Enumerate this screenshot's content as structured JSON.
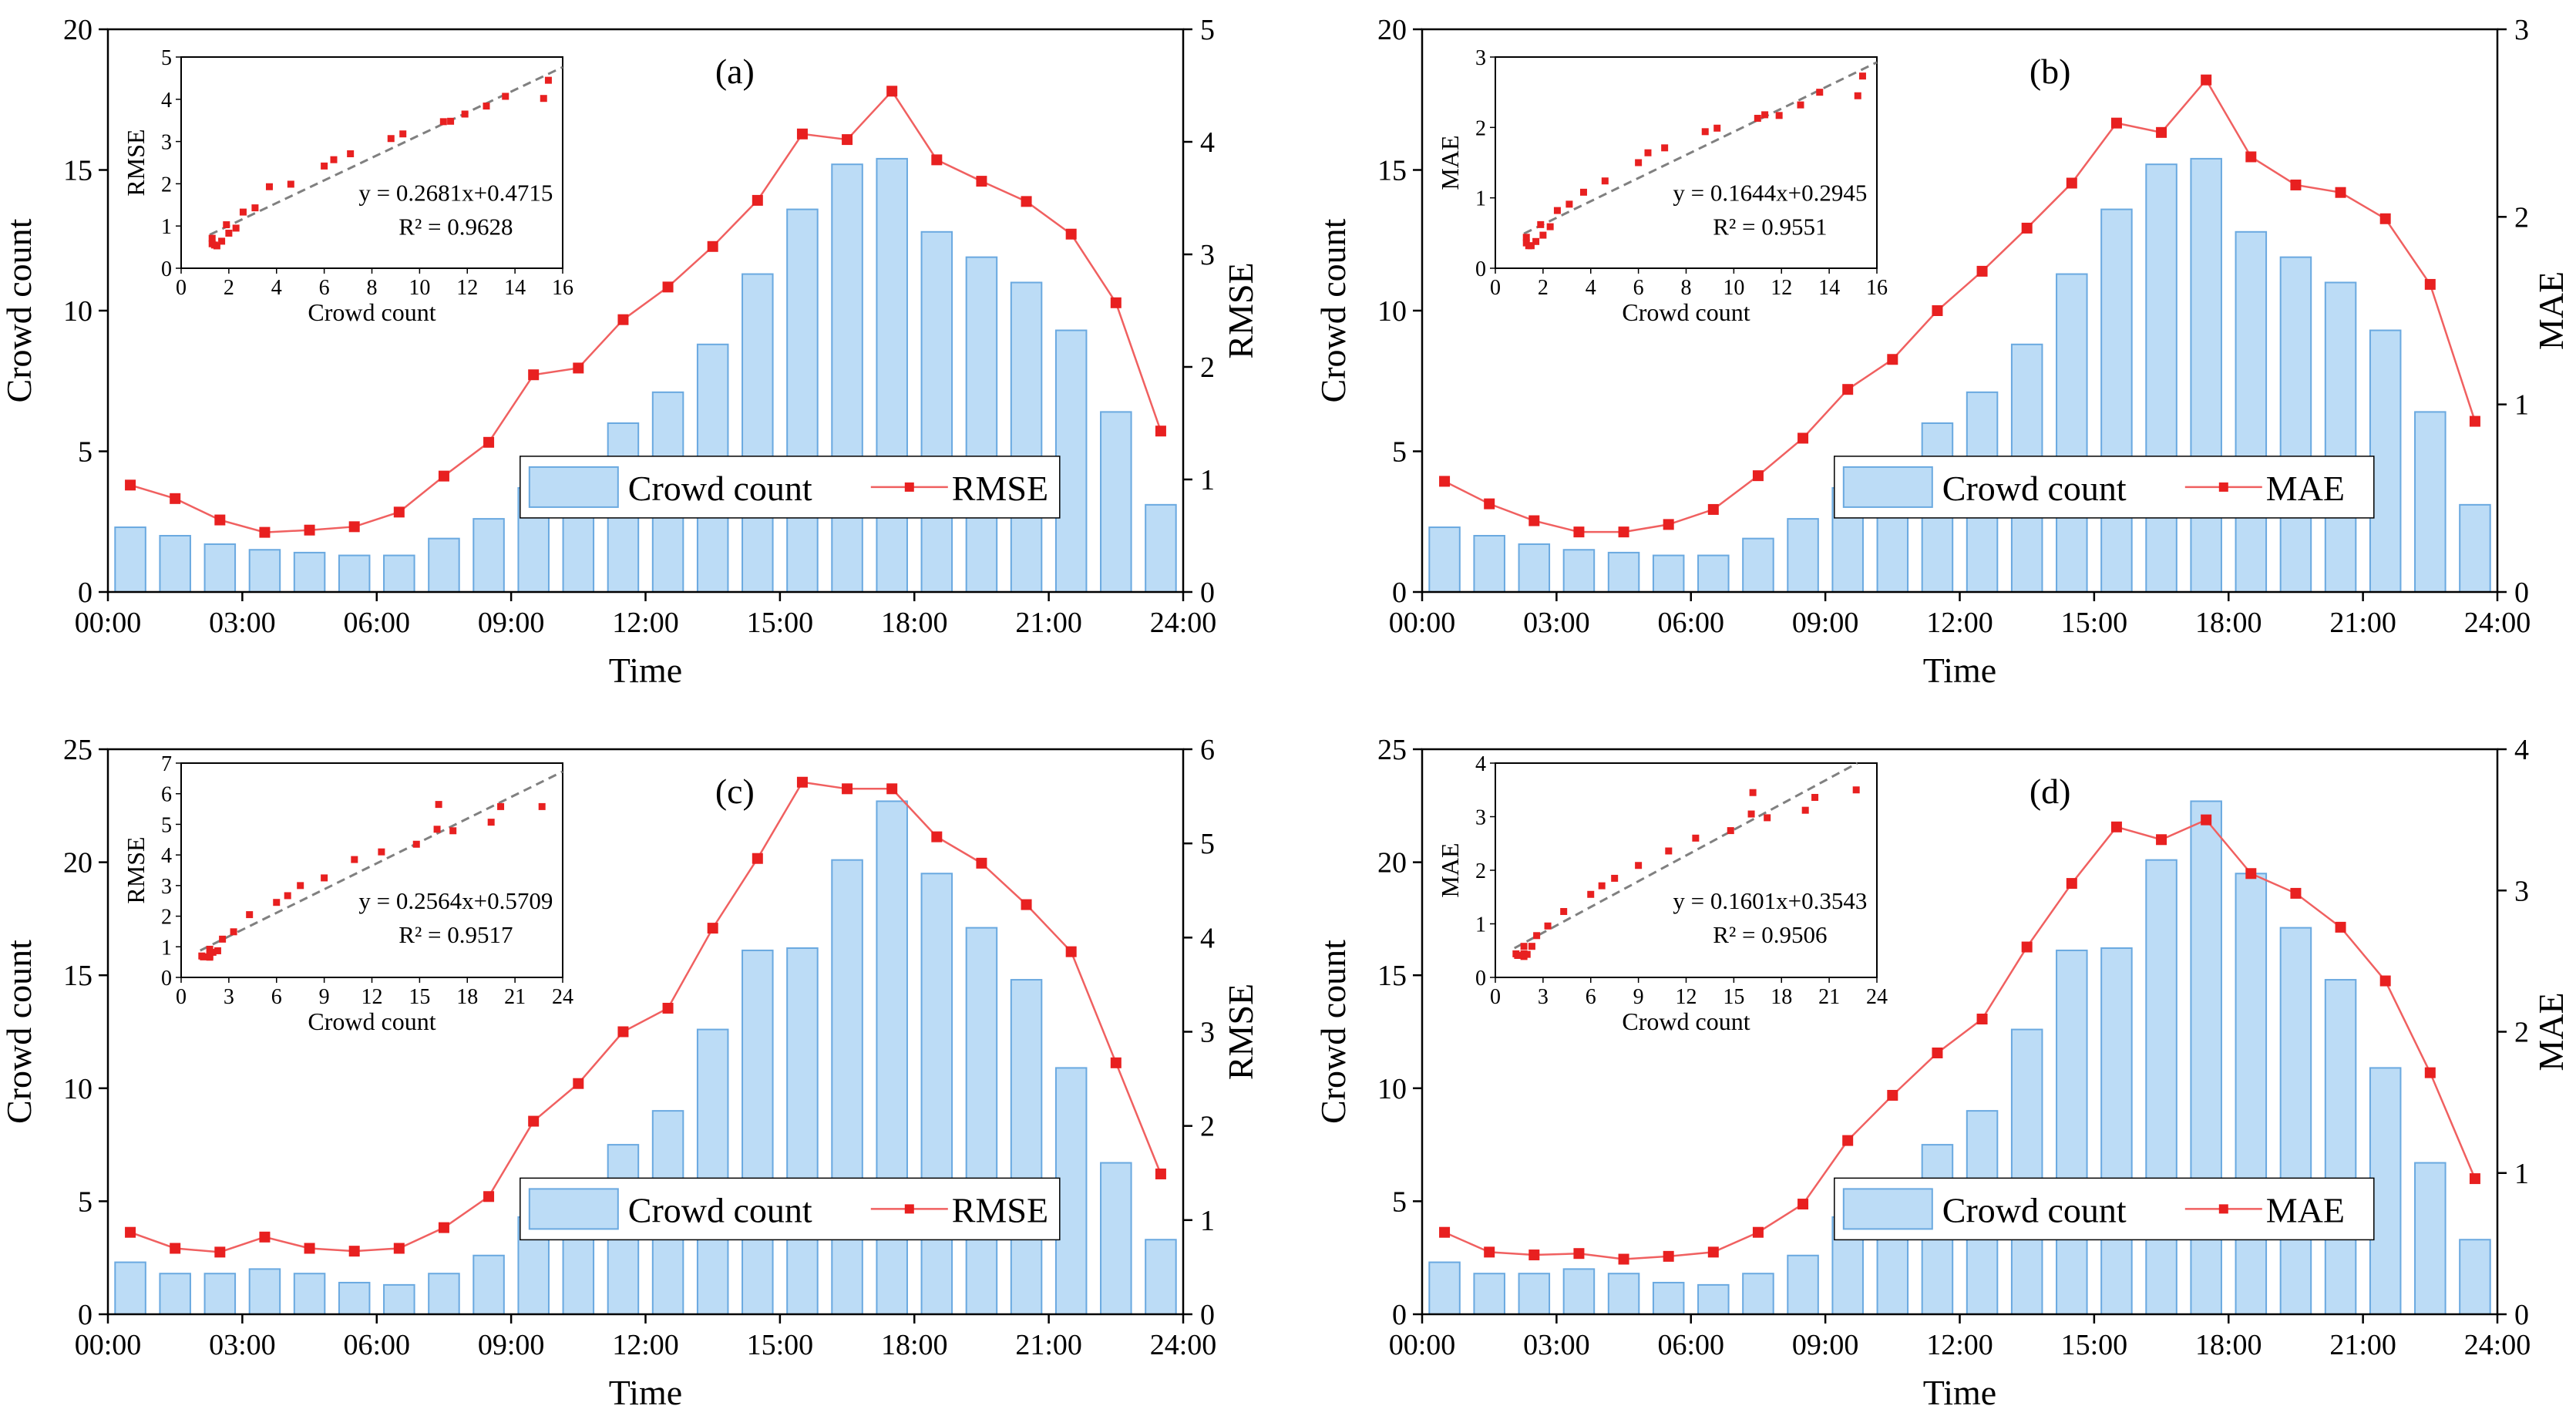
{
  "colors": {
    "bar_fill": "#bcdcf6",
    "bar_stroke": "#6aa9e0",
    "line": "#f06060",
    "marker": "#e82020",
    "fit_line": "#808080",
    "axis": "#000000"
  },
  "chart_data": [
    {
      "panel": "(a)",
      "type": "bar+line",
      "xlabel": "Time",
      "ylabel": "Crowd count",
      "y2label": "RMSE",
      "xticks": [
        "00:00",
        "03:00",
        "06:00",
        "09:00",
        "12:00",
        "15:00",
        "18:00",
        "21:00",
        "24:00"
      ],
      "ylim": [
        0,
        20
      ],
      "yticks": [
        "0",
        "5",
        "10",
        "15",
        "20"
      ],
      "y2lim": [
        0,
        5
      ],
      "y2ticks": [
        "0",
        "1",
        "2",
        "3",
        "4",
        "5"
      ],
      "legend": {
        "bar": "Crowd count",
        "line": "RMSE"
      },
      "series": [
        {
          "name": "Crowd count",
          "type": "bar",
          "values": [
            2.3,
            2.0,
            1.7,
            1.5,
            1.4,
            1.3,
            1.3,
            1.9,
            2.6,
            3.7,
            4.6,
            6.0,
            7.1,
            8.8,
            11.3,
            13.6,
            15.2,
            15.4,
            12.8,
            11.9,
            11.0,
            9.3,
            6.4,
            3.1
          ]
        },
        {
          "name": "RMSE",
          "type": "line",
          "values": [
            0.95,
            0.83,
            0.64,
            0.53,
            0.55,
            0.58,
            0.71,
            1.03,
            1.33,
            1.93,
            1.99,
            2.42,
            2.71,
            3.07,
            3.48,
            4.07,
            4.02,
            4.45,
            3.84,
            3.65,
            3.47,
            3.18,
            2.57,
            1.43
          ]
        }
      ],
      "inset": {
        "xlabel": "Crowd count",
        "ylabel": "RMSE",
        "xlim": [
          0,
          16
        ],
        "xticks": [
          "0",
          "2",
          "4",
          "6",
          "8",
          "10",
          "12",
          "14",
          "16"
        ],
        "ylim": [
          0,
          5
        ],
        "yticks": [
          "0",
          "1",
          "2",
          "3",
          "4",
          "5"
        ],
        "fit": {
          "slope": 0.2681,
          "intercept": 0.4715
        },
        "equation": "y = 0.2681x+0.4715",
        "r2": "R² = 0.9628"
      }
    },
    {
      "panel": "(b)",
      "type": "bar+line",
      "xlabel": "Time",
      "ylabel": "Crowd count",
      "y2label": "MAE",
      "xticks": [
        "00:00",
        "03:00",
        "06:00",
        "09:00",
        "12:00",
        "15:00",
        "18:00",
        "21:00",
        "24:00"
      ],
      "ylim": [
        0,
        20
      ],
      "yticks": [
        "0",
        "5",
        "10",
        "15",
        "20"
      ],
      "y2lim": [
        0,
        3
      ],
      "y2ticks": [
        "0",
        "1",
        "2",
        "3"
      ],
      "legend": {
        "bar": "Crowd count",
        "line": "MAE"
      },
      "series": [
        {
          "name": "Crowd count",
          "type": "bar",
          "values": [
            2.3,
            2.0,
            1.7,
            1.5,
            1.4,
            1.3,
            1.3,
            1.9,
            2.6,
            3.7,
            4.6,
            6.0,
            7.1,
            8.8,
            11.3,
            13.6,
            15.2,
            15.4,
            12.8,
            11.9,
            11.0,
            9.3,
            6.4,
            3.1
          ]
        },
        {
          "name": "MAE",
          "type": "line",
          "values": [
            0.59,
            0.47,
            0.38,
            0.32,
            0.32,
            0.36,
            0.44,
            0.62,
            0.82,
            1.08,
            1.24,
            1.5,
            1.71,
            1.94,
            2.18,
            2.5,
            2.45,
            2.73,
            2.32,
            2.17,
            2.13,
            1.99,
            1.64,
            0.91
          ]
        }
      ],
      "inset": {
        "xlabel": "Crowd count",
        "ylabel": "MAE",
        "xlim": [
          0,
          16
        ],
        "xticks": [
          "0",
          "2",
          "4",
          "6",
          "8",
          "10",
          "12",
          "14",
          "16"
        ],
        "ylim": [
          0,
          3
        ],
        "yticks": [
          "0",
          "1",
          "2",
          "3"
        ],
        "fit": {
          "slope": 0.1644,
          "intercept": 0.2945
        },
        "equation": "y = 0.1644x+0.2945",
        "r2": "R² = 0.9551"
      }
    },
    {
      "panel": "(c)",
      "type": "bar+line",
      "xlabel": "Time",
      "ylabel": "Crowd count",
      "y2label": "RMSE",
      "xticks": [
        "00:00",
        "03:00",
        "06:00",
        "09:00",
        "12:00",
        "15:00",
        "18:00",
        "21:00",
        "24:00"
      ],
      "ylim": [
        0,
        25
      ],
      "yticks": [
        "0",
        "5",
        "10",
        "15",
        "20",
        "25"
      ],
      "y2lim": [
        0,
        6
      ],
      "y2ticks": [
        "0",
        "1",
        "2",
        "3",
        "4",
        "5",
        "6"
      ],
      "legend": {
        "bar": "Crowd count",
        "line": "RMSE"
      },
      "series": [
        {
          "name": "Crowd count",
          "type": "bar",
          "values": [
            2.3,
            1.8,
            1.8,
            2.0,
            1.8,
            1.4,
            1.3,
            1.8,
            2.6,
            4.3,
            6.0,
            7.5,
            9.0,
            12.6,
            16.1,
            16.2,
            20.1,
            22.7,
            19.5,
            17.1,
            14.8,
            10.9,
            6.7,
            3.3
          ]
        },
        {
          "name": "RMSE",
          "type": "line",
          "values": [
            0.87,
            0.7,
            0.66,
            0.82,
            0.7,
            0.67,
            0.7,
            0.92,
            1.25,
            2.05,
            2.45,
            3.0,
            3.25,
            4.1,
            4.84,
            5.65,
            5.58,
            5.58,
            5.07,
            4.79,
            4.35,
            3.85,
            2.67,
            1.49
          ]
        }
      ],
      "inset": {
        "xlabel": "Crowd count",
        "ylabel": "RMSE",
        "xlim": [
          0,
          24
        ],
        "xticks": [
          "0",
          "3",
          "6",
          "9",
          "12",
          "15",
          "18",
          "21",
          "24"
        ],
        "ylim": [
          0,
          7
        ],
        "yticks": [
          "0",
          "1",
          "2",
          "3",
          "4",
          "5",
          "6",
          "7"
        ],
        "fit": {
          "slope": 0.2564,
          "intercept": 0.5709
        },
        "equation": "y = 0.2564x+0.5709",
        "r2": "R² = 0.9517"
      }
    },
    {
      "panel": "(d)",
      "type": "bar+line",
      "xlabel": "Time",
      "ylabel": "Crowd count",
      "y2label": "MAE",
      "xticks": [
        "00:00",
        "03:00",
        "06:00",
        "09:00",
        "12:00",
        "15:00",
        "18:00",
        "21:00",
        "24:00"
      ],
      "ylim": [
        0,
        25
      ],
      "yticks": [
        "0",
        "5",
        "10",
        "15",
        "20",
        "25"
      ],
      "y2lim": [
        0,
        4
      ],
      "y2ticks": [
        "0",
        "1",
        "2",
        "3",
        "4"
      ],
      "legend": {
        "bar": "Crowd count",
        "line": "MAE"
      },
      "series": [
        {
          "name": "Crowd count",
          "type": "bar",
          "values": [
            2.3,
            1.8,
            1.8,
            2.0,
            1.8,
            1.4,
            1.3,
            1.8,
            2.6,
            4.3,
            6.0,
            7.5,
            9.0,
            12.6,
            16.1,
            16.2,
            20.1,
            22.7,
            19.5,
            17.1,
            14.8,
            10.9,
            6.7,
            3.3
          ]
        },
        {
          "name": "MAE",
          "type": "line",
          "values": [
            0.58,
            0.44,
            0.42,
            0.43,
            0.39,
            0.41,
            0.44,
            0.58,
            0.78,
            1.23,
            1.55,
            1.85,
            2.09,
            2.6,
            3.05,
            3.45,
            3.36,
            3.5,
            3.12,
            2.98,
            2.74,
            2.36,
            1.71,
            0.96
          ]
        }
      ],
      "inset": {
        "xlabel": "Crowd count",
        "ylabel": "MAE",
        "xlim": [
          0,
          24
        ],
        "xticks": [
          "0",
          "3",
          "6",
          "9",
          "12",
          "15",
          "18",
          "21",
          "24"
        ],
        "ylim": [
          0,
          4
        ],
        "yticks": [
          "0",
          "1",
          "2",
          "3",
          "4"
        ],
        "fit": {
          "slope": 0.1601,
          "intercept": 0.3543
        },
        "equation": "y = 0.1601x+0.3543",
        "r2": "R² = 0.9506"
      }
    }
  ]
}
